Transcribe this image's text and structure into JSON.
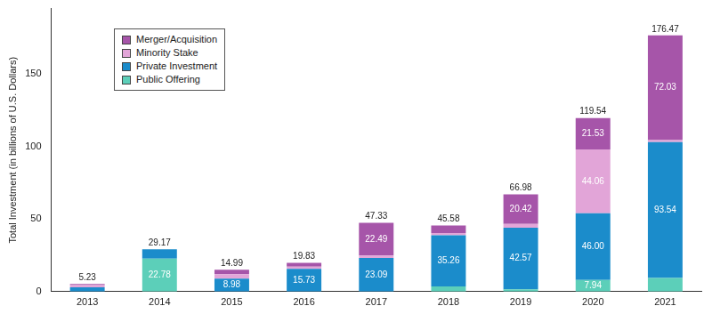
{
  "chart_data": {
    "type": "bar",
    "stacked": true,
    "data_labels": true,
    "grid": false,
    "legend": "upper left",
    "y_label": "Total Investment (in billions of U.S. Dollars)",
    "categories": [
      "2013",
      "2014",
      "2015",
      "2016",
      "2017",
      "2018",
      "2019",
      "2020",
      "2021"
    ],
    "ylim": [
      0,
      195
    ],
    "yticks": [
      0,
      50,
      100,
      150
    ],
    "totals": [
      5.23,
      29.17,
      14.99,
      19.83,
      47.33,
      45.58,
      66.98,
      119.54,
      176.47
    ],
    "series": [
      {
        "name": "Public Offering",
        "color": "#5ccfb9",
        "values": [
          0,
          22.78,
          0,
          0,
          0,
          3.5,
          1.5,
          7.94,
          9.4
        ],
        "value_labels": [
          null,
          "22.78",
          null,
          null,
          null,
          null,
          null,
          "7.94",
          null
        ]
      },
      {
        "name": "Private Investment",
        "color": "#1b8ccb",
        "values": [
          3.0,
          6.39,
          8.98,
          15.73,
          23.09,
          35.26,
          42.57,
          46.0,
          93.54
        ],
        "value_labels": [
          null,
          null,
          "8.98",
          "15.73",
          "23.09",
          "35.26",
          "42.57",
          "46.00",
          "93.54"
        ]
      },
      {
        "name": "Minority Stake",
        "color": "#e2a5d8",
        "values": [
          1.5,
          0,
          3.0,
          1.5,
          1.75,
          1.5,
          2.49,
          44.06,
          1.5
        ],
        "value_labels": [
          null,
          null,
          null,
          null,
          null,
          null,
          null,
          "44.06",
          null
        ]
      },
      {
        "name": "Merger/Acquisition",
        "color": "#a655a9",
        "values": [
          0.73,
          0,
          3.01,
          2.6,
          22.49,
          5.32,
          20.42,
          21.53,
          72.03
        ],
        "value_labels": [
          null,
          null,
          null,
          null,
          "22.49",
          null,
          "20.42",
          "21.53",
          "72.03"
        ]
      }
    ]
  }
}
